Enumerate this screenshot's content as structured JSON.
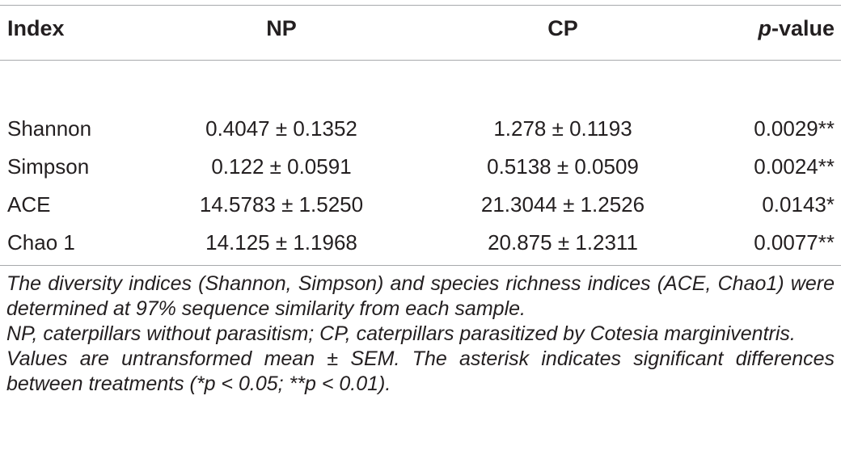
{
  "table": {
    "headers": {
      "index": "Index",
      "np": "NP",
      "cp": "CP",
      "p_prefix": "p",
      "p_suffix": "-value"
    },
    "rows": [
      {
        "index": "Shannon",
        "np": "0.4047 ± 0.1352",
        "cp": "1.278 ± 0.1193",
        "p": "0.0029**"
      },
      {
        "index": "Simpson",
        "np": "0.122 ± 0.0591",
        "cp": "0.5138 ± 0.0509",
        "p": "0.0024**"
      },
      {
        "index": "ACE",
        "np": "14.5783 ± 1.5250",
        "cp": "21.3044 ± 1.2526",
        "p": "0.0143*"
      },
      {
        "index": "Chao 1",
        "np": "14.125 ± 1.1968",
        "cp": "20.875 ± 1.2311",
        "p": "0.0077**"
      }
    ]
  },
  "footnotes": [
    "The diversity indices (Shannon, Simpson) and species richness indices (ACE, Chao1) were determined at 97% sequence similarity from each sample.",
    "NP, caterpillars without parasitism; CP, caterpillars parasitized by Cotesia marginiventris.",
    "Values are untransformed mean ± SEM. The asterisk indicates significant differences between treatments (*p < 0.05; **p < 0.01)."
  ]
}
